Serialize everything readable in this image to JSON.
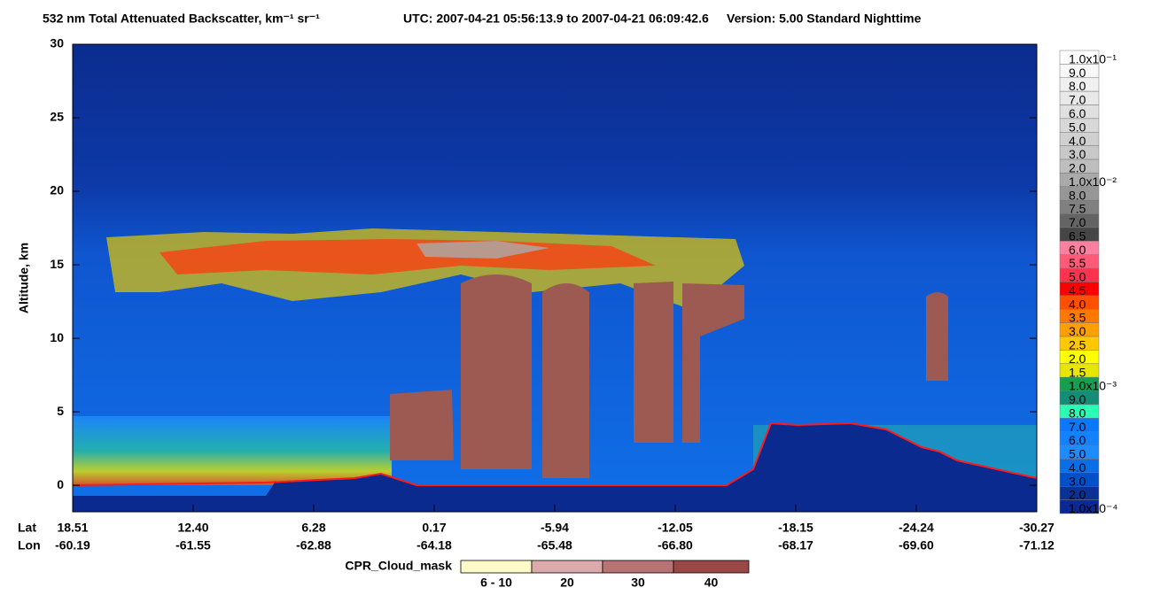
{
  "chart_data": {
    "type": "curtain",
    "title": "532 nm Total Attenuated Backscatter, km⁻¹ sr⁻¹",
    "time_range": "UTC:  2007-04-21 05:56:13.9  to  2007-04-21 06:09:42.6",
    "version": "Version: 5.00  Standard  Nighttime",
    "y_label": "Altitude, km",
    "ylim": [
      -1.8,
      30
    ],
    "yticks": [
      0,
      5,
      10,
      15,
      20,
      25,
      30
    ],
    "x_rows": [
      {
        "name": "Lat",
        "labels": [
          "18.51",
          "12.40",
          "6.28",
          "0.17",
          "-5.94",
          "-12.05",
          "-18.15",
          "-24.24",
          "-30.27"
        ]
      },
      {
        "name": "Lon",
        "labels": [
          "-60.19",
          "-61.55",
          "-62.88",
          "-64.18",
          "-65.48",
          "-66.80",
          "-68.17",
          "-69.60",
          "-71.12"
        ]
      }
    ],
    "colorbar": {
      "labels": [
        "1.0x10⁻¹",
        "9.0",
        "8.0",
        "7.0",
        "6.0",
        "5.0",
        "4.0",
        "3.0",
        "2.0",
        "1.0x10⁻²",
        "8.0",
        "7.5",
        "7.0",
        "6.5",
        "6.0",
        "5.5",
        "5.0",
        "4.5",
        "4.0",
        "3.5",
        "3.0",
        "2.5",
        "2.0",
        "1.5",
        "1.0x10⁻³",
        "9.0",
        "8.0",
        "7.0",
        "6.0",
        "5.0",
        "4.0",
        "3.0",
        "2.0",
        "1.0x10⁻⁴"
      ],
      "colors": [
        "#ffffff",
        "#f8f8f8",
        "#f0f0f0",
        "#e8e8e8",
        "#e0e0e0",
        "#d8d8d8",
        "#d0d0d0",
        "#c8c8c8",
        "#bebebe",
        "#aaaaaa",
        "#969696",
        "#808080",
        "#646464",
        "#464646",
        "#ff7fa0",
        "#ff5a78",
        "#ff3250",
        "#ff0000",
        "#ff5000",
        "#ff7800",
        "#ffa000",
        "#ffc800",
        "#ffff00",
        "#e6e600",
        "#14a050",
        "#148c78",
        "#28ffb4",
        "#0a78ff",
        "#1482ff",
        "#1e8cff",
        "#0a6ee6",
        "#0050c8",
        "#0a3296",
        "#0a2896"
      ]
    },
    "cloud_mask": {
      "title": "CPR_Cloud_mask",
      "labels": [
        "6 - 10",
        "20",
        "30",
        "40"
      ],
      "colors": [
        "#fffbc8",
        "#dcaaaa",
        "#b87474",
        "#9a4846"
      ]
    }
  }
}
